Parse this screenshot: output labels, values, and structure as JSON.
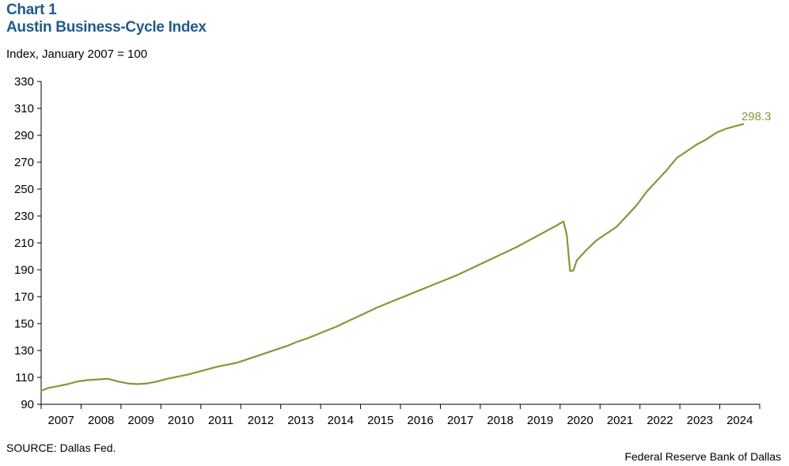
{
  "header": {
    "chart_number": "Chart 1",
    "title": "Austin Business-Cycle Index",
    "unit_label": "Index, January 2007 = 100"
  },
  "footer": {
    "source": "SOURCE: Dallas Fed.",
    "credit": "Federal Reserve Bank of Dallas"
  },
  "colors": {
    "line": "#7f9a3a",
    "title": "#1f5a8c",
    "axis": "#000000"
  },
  "chart_data": {
    "type": "line",
    "title": "Austin Business-Cycle Index",
    "ylabel": "Index, January 2007 = 100",
    "xlabel": "",
    "ylim": [
      90,
      330
    ],
    "yticks": [
      90,
      110,
      130,
      150,
      170,
      190,
      210,
      230,
      250,
      270,
      290,
      310,
      330
    ],
    "xlim": [
      "2007-01",
      "2024-12"
    ],
    "xtick_labels": [
      "2007",
      "2008",
      "2009",
      "2010",
      "2011",
      "2012",
      "2013",
      "2014",
      "2015",
      "2016",
      "2017",
      "2018",
      "2019",
      "2020",
      "2021",
      "2022",
      "2023",
      "2024"
    ],
    "grid": false,
    "legend": "none",
    "end_label": "298.3",
    "series": [
      {
        "points": [
          [
            "2007-01",
            100
          ],
          [
            "2007-03",
            102
          ],
          [
            "2007-06",
            103.5
          ],
          [
            "2007-09",
            105
          ],
          [
            "2007-12",
            107
          ],
          [
            "2008-03",
            108
          ],
          [
            "2008-06",
            108.5
          ],
          [
            "2008-09",
            109
          ],
          [
            "2008-12",
            107
          ],
          [
            "2009-03",
            105.5
          ],
          [
            "2009-06",
            105
          ],
          [
            "2009-09",
            105.5
          ],
          [
            "2009-12",
            107
          ],
          [
            "2010-03",
            109
          ],
          [
            "2010-06",
            110.5
          ],
          [
            "2010-09",
            112
          ],
          [
            "2010-12",
            114
          ],
          [
            "2011-03",
            116
          ],
          [
            "2011-06",
            118
          ],
          [
            "2011-09",
            119.5
          ],
          [
            "2011-12",
            121
          ],
          [
            "2012-03",
            123.5
          ],
          [
            "2012-06",
            126
          ],
          [
            "2012-09",
            128.5
          ],
          [
            "2012-12",
            131
          ],
          [
            "2013-03",
            133.5
          ],
          [
            "2013-06",
            136.5
          ],
          [
            "2013-09",
            139
          ],
          [
            "2013-12",
            142
          ],
          [
            "2014-03",
            145
          ],
          [
            "2014-06",
            148
          ],
          [
            "2014-09",
            151.5
          ],
          [
            "2014-12",
            155
          ],
          [
            "2015-03",
            158.5
          ],
          [
            "2015-06",
            162
          ],
          [
            "2015-09",
            165
          ],
          [
            "2015-12",
            168
          ],
          [
            "2016-03",
            171
          ],
          [
            "2016-06",
            174
          ],
          [
            "2016-09",
            177
          ],
          [
            "2016-12",
            180
          ],
          [
            "2017-03",
            183
          ],
          [
            "2017-06",
            186
          ],
          [
            "2017-09",
            189.5
          ],
          [
            "2017-12",
            193
          ],
          [
            "2018-03",
            196.5
          ],
          [
            "2018-06",
            200
          ],
          [
            "2018-09",
            203.5
          ],
          [
            "2018-12",
            207
          ],
          [
            "2019-03",
            211
          ],
          [
            "2019-06",
            215
          ],
          [
            "2019-09",
            219
          ],
          [
            "2019-12",
            223
          ],
          [
            "2020-02",
            226
          ],
          [
            "2020-03",
            216
          ],
          [
            "2020-04",
            189
          ],
          [
            "2020-05",
            189.5
          ],
          [
            "2020-06",
            197
          ],
          [
            "2020-09",
            205
          ],
          [
            "2020-12",
            212
          ],
          [
            "2021-03",
            217
          ],
          [
            "2021-06",
            222
          ],
          [
            "2021-09",
            230
          ],
          [
            "2021-12",
            238
          ],
          [
            "2022-03",
            248
          ],
          [
            "2022-06",
            256
          ],
          [
            "2022-09",
            264
          ],
          [
            "2022-12",
            273
          ],
          [
            "2023-03",
            278
          ],
          [
            "2023-06",
            283
          ],
          [
            "2023-09",
            287
          ],
          [
            "2023-12",
            292
          ],
          [
            "2024-03",
            295
          ],
          [
            "2024-06",
            297
          ],
          [
            "2024-08",
            298.3
          ]
        ]
      }
    ]
  }
}
